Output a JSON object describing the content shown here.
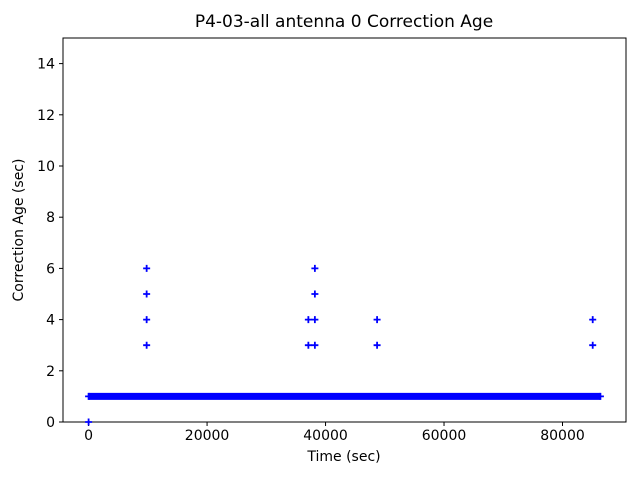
{
  "chart_data": {
    "type": "scatter",
    "title": "P4-03-all antenna 0 Correction Age",
    "xlabel": "Time (sec)",
    "ylabel": "Correction Age (sec)",
    "xlim": [
      -4320,
      90720
    ],
    "ylim": [
      0,
      15
    ],
    "xticks": [
      0,
      20000,
      40000,
      60000,
      80000
    ],
    "yticks": [
      0,
      2,
      4,
      6,
      8,
      10,
      12,
      14
    ],
    "grid": false,
    "legend": null,
    "marker": "+",
    "marker_color": "#0000ff",
    "axis_color": "#000000",
    "background_color": "#ffffff",
    "series": [
      {
        "name": "correction-age-dense-band",
        "style": "dense_horizontal_band",
        "y": 1,
        "x_start": 0,
        "x_end": 86400,
        "description": "continuous run of overlapping + markers at correction age 1 sec for the entire day"
      },
      {
        "name": "correction-age-outliers",
        "style": "points",
        "points": [
          [
            0,
            0
          ],
          [
            9800,
            3
          ],
          [
            9800,
            4
          ],
          [
            9800,
            5
          ],
          [
            9800,
            6
          ],
          [
            37100,
            3
          ],
          [
            37100,
            4
          ],
          [
            38200,
            3
          ],
          [
            38200,
            4
          ],
          [
            38200,
            5
          ],
          [
            38200,
            6
          ],
          [
            48700,
            3
          ],
          [
            48700,
            4
          ],
          [
            85100,
            3
          ],
          [
            85100,
            4
          ]
        ]
      }
    ]
  }
}
